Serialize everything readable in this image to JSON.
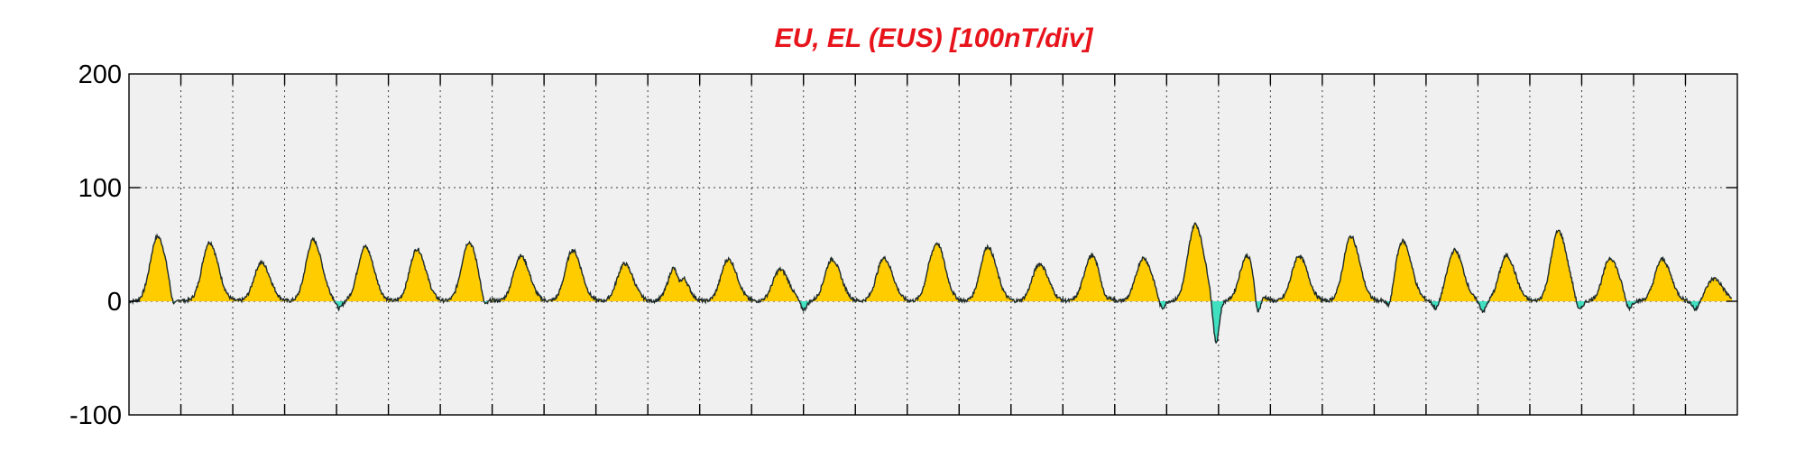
{
  "chart_data": {
    "type": "area",
    "title": "EU, EL (EUS)  [100nT/div]",
    "xlabel": "",
    "ylabel": "",
    "ylim": [
      -100,
      200
    ],
    "yticks": [
      {
        "value": 200,
        "label": "200"
      },
      {
        "value": 100,
        "label": "100"
      },
      {
        "value": 0,
        "label": "0"
      },
      {
        "value": -100,
        "label": "-100"
      }
    ],
    "xlim": [
      0,
      31
    ],
    "x_divisions": 31,
    "grid": true,
    "colors": {
      "positive_fill": "#ffcc00",
      "negative_fill": "#40e0c0",
      "trace": "#1e2b2b",
      "title": "#e8141c",
      "plot_background": "#f0f0f0"
    },
    "series": [
      {
        "role": "EU (positive, yellow fill)",
        "peak_x": [
          0.55,
          1.55,
          2.55,
          3.55,
          4.55,
          5.55,
          6.55,
          7.55,
          8.55,
          9.55,
          10.55,
          11.55,
          12.55,
          13.55,
          14.55,
          15.55,
          16.55,
          17.55,
          18.55,
          19.55,
          20.55,
          21.55,
          22.55,
          23.55,
          24.55,
          25.55,
          26.55,
          27.55,
          28.55,
          29.55,
          30.55
        ],
        "peak_values": [
          57,
          52,
          34,
          54,
          48,
          46,
          52,
          40,
          45,
          33,
          35,
          37,
          28,
          37,
          38,
          54,
          48,
          33,
          40,
          38,
          68,
          40,
          40,
          57,
          53,
          45,
          40,
          62,
          38,
          37,
          20
        ]
      },
      {
        "role": "EL (negative, cyan fill)",
        "dip_x": [
          0.85,
          4.05,
          6.85,
          10.6,
          13.0,
          15.5,
          18.8,
          19.9,
          20.95,
          21.75,
          24.3,
          25.2,
          26.1,
          27.95,
          28.9,
          30.2
        ],
        "dip_values": [
          -12,
          -7,
          -12,
          -15,
          -8,
          -5,
          -7,
          -10,
          -40,
          -27,
          -12,
          -8,
          -9,
          -11,
          -10,
          -8
        ]
      }
    ]
  }
}
